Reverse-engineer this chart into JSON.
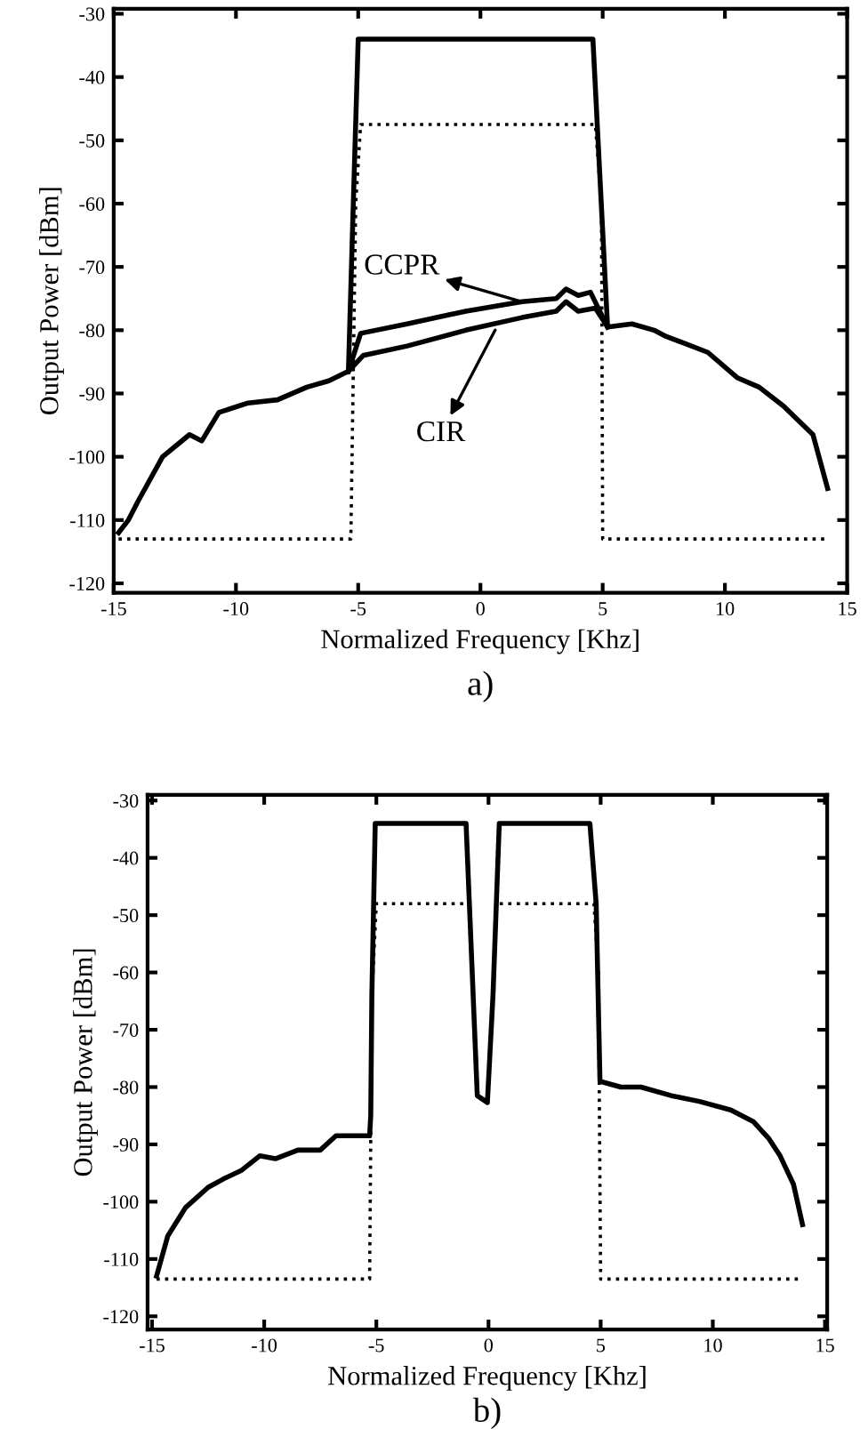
{
  "chart_data": [
    {
      "type": "line",
      "title": "a)",
      "xlabel": "Normalized Frequency [Khz]",
      "ylabel": "Output Power [dBm]",
      "xlim": [
        -15,
        15
      ],
      "ylim": [
        -121.5,
        -29.2
      ],
      "xticks": [
        -15,
        -10,
        -5,
        0,
        5,
        10,
        15
      ],
      "yticks": [
        -30,
        -40,
        -50,
        -60,
        -70,
        -80,
        -90,
        -100,
        -110,
        -120
      ],
      "grid": false,
      "legend": false,
      "marker": "none",
      "series": [
        {
          "color": "#000000",
          "line_style": "solid",
          "x": [
            -14.8,
            -14.4,
            -14.0,
            -13.0,
            -11.9,
            -11.4,
            -10.7,
            -9.5,
            -8.3,
            -7.1,
            -6.2,
            -5.4,
            -5.2,
            -5.0,
            4.6,
            5.2,
            6.2,
            7.1,
            7.6,
            8.3,
            9.3,
            10.5,
            11.4,
            12.4,
            13.6,
            14.2
          ],
          "values": [
            -112,
            -110,
            -107,
            -100,
            -96.5,
            -97.5,
            -93,
            -91.5,
            -91,
            -89,
            -88,
            -86.5,
            -60,
            -34,
            -34,
            -79.5,
            -79,
            -80,
            -81,
            -82,
            -83.5,
            -87.5,
            -89,
            -92,
            -96.5,
            -105
          ]
        },
        {
          "color": "#000000",
          "line_style": "solid",
          "x": [
            -5.4,
            -4.9,
            -3.0,
            -0.6,
            1.7,
            3.1,
            3.5,
            4.0,
            4.5,
            5.2
          ],
          "values": [
            -86.5,
            -80.5,
            -79,
            -77,
            -75.5,
            -75,
            -73.5,
            -74.5,
            -74,
            -79.5
          ]
        },
        {
          "color": "#000000",
          "line_style": "solid",
          "x": [
            -5.4,
            -4.8,
            -3.0,
            -0.6,
            1.7,
            3.1,
            3.5,
            4.0,
            4.7,
            5.2
          ],
          "values": [
            -86.5,
            -84,
            -82.5,
            -80,
            -78,
            -77,
            -75.5,
            -77,
            -76.5,
            -79.5
          ]
        },
        {
          "color": "#000000",
          "line_style": "dotted",
          "x": [
            -14.8,
            -5.3,
            -5.1,
            -4.9,
            4.7,
            4.95,
            5.0,
            14.2
          ],
          "values": [
            -113,
            -113,
            -60,
            -47.5,
            -47.5,
            -60,
            -113,
            -113
          ]
        }
      ],
      "annotations": [
        {
          "text": "CCPR",
          "x": 1.7,
          "y": -75.5
        },
        {
          "text": "CIR",
          "x": 0.6,
          "y": -80
        }
      ]
    },
    {
      "type": "line",
      "title": "b)",
      "xlabel": "Normalized Frequency [Khz]",
      "ylabel": "Output Power [dBm]",
      "xlim": [
        -15.2,
        15.1
      ],
      "ylim": [
        -122.3,
        -29
      ],
      "xticks": [
        -15,
        -10,
        -5,
        0,
        5,
        10,
        15
      ],
      "yticks": [
        -30,
        -40,
        -50,
        -60,
        -70,
        -80,
        -90,
        -100,
        -110,
        -120
      ],
      "grid": false,
      "legend": false,
      "marker": "none",
      "series": [
        {
          "color": "#000000",
          "line_style": "solid",
          "x": [
            -14.8,
            -14.3,
            -13.5,
            -12.5,
            -11.8,
            -11.0,
            -10.2,
            -9.5,
            -8.5,
            -7.5,
            -6.8,
            -6.0,
            -5.3,
            -5.25,
            -5.2,
            -5.05,
            -1.0,
            -0.5,
            -0.05,
            0.2,
            0.48,
            4.52,
            4.8,
            4.97,
            5.9,
            6.8,
            8.15,
            9.4,
            10.8,
            11.8,
            12.5,
            13.0,
            13.6,
            14.0
          ],
          "values": [
            -113,
            -106,
            -101,
            -97.5,
            -96,
            -94.5,
            -92,
            -92.5,
            -91,
            -91,
            -88.5,
            -88.5,
            -88.5,
            -85,
            -64,
            -34,
            -34,
            -81.5,
            -82.7,
            -64,
            -34,
            -34,
            -48,
            -79,
            -80,
            -80,
            -81.5,
            -82.5,
            -84,
            -86,
            -89,
            -92,
            -97,
            -104
          ]
        },
        {
          "color": "#000000",
          "line_style": "dotted",
          "x": [
            -14.8,
            -5.3,
            -5.2,
            -5.0,
            -1.0,
            -0.2,
            0.5,
            4.7,
            4.9,
            5.0,
            14.0
          ],
          "values": [
            -113.5,
            -113.5,
            -64,
            -48,
            -48,
            null,
            -48,
            -48,
            -60,
            -113.5,
            -113.5
          ]
        }
      ]
    }
  ]
}
